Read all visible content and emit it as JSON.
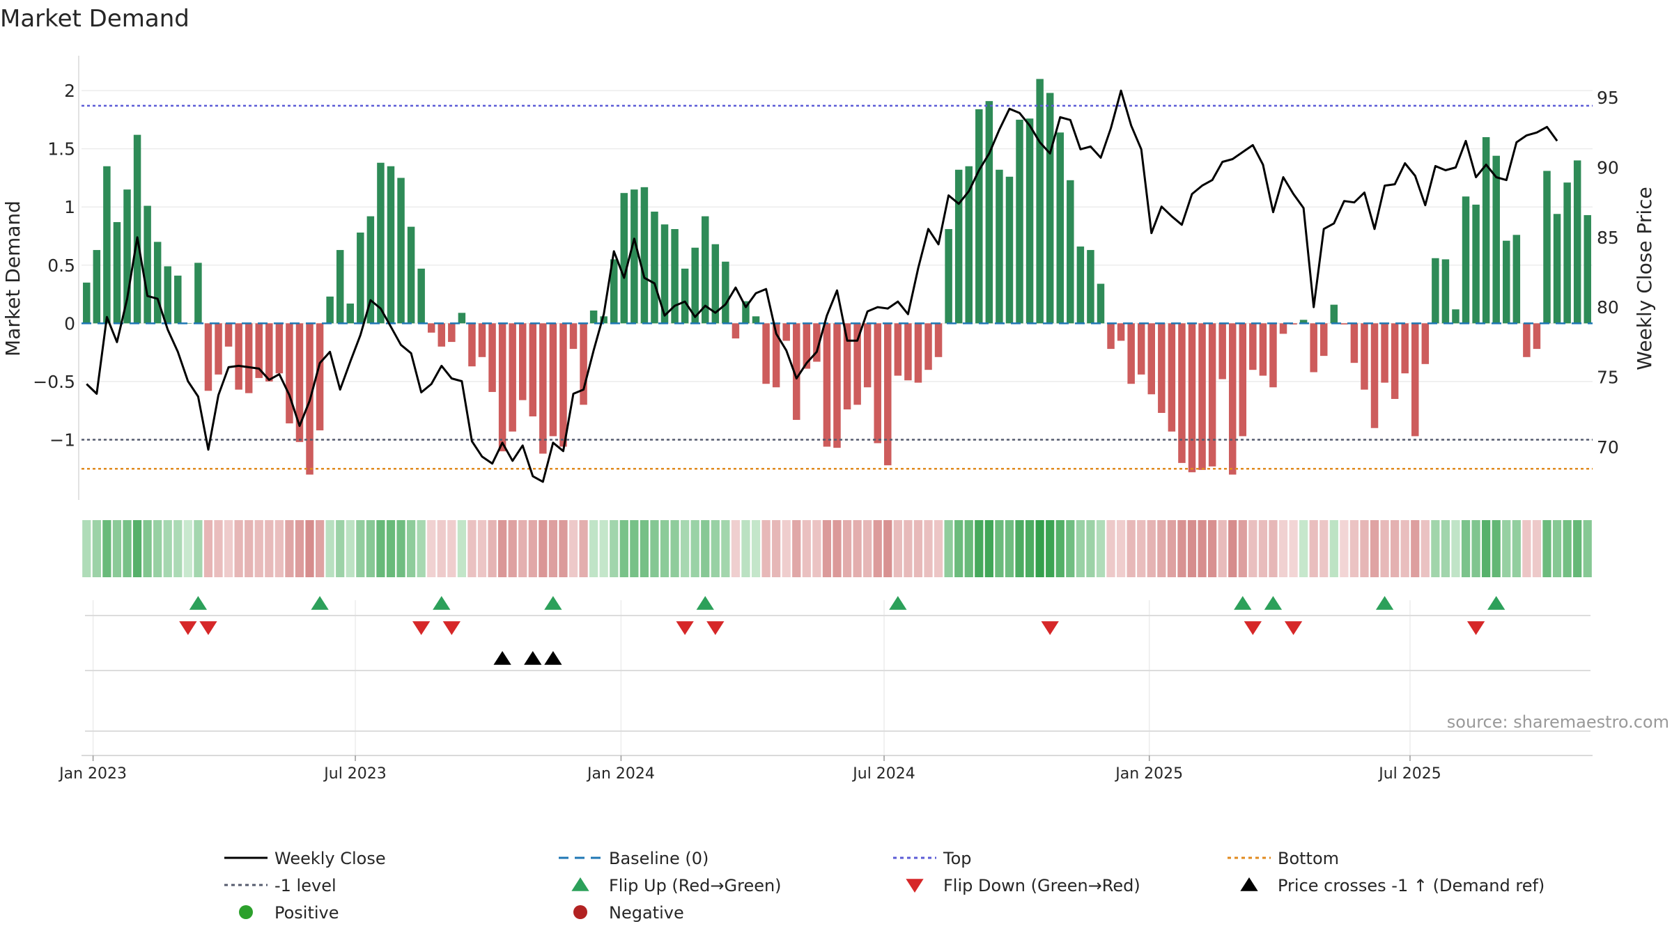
{
  "chart_data": {
    "type": "bar",
    "title": "Market Demand",
    "ylabel": "Market Demand",
    "y2label": "Weekly Close Price",
    "source": "source: sharemaestro.com",
    "ylim": [
      -1.5,
      2.3
    ],
    "y2lim": [
      66.35,
      98.0
    ],
    "yticks": [
      2,
      1.5,
      1,
      0.5,
      0,
      -0.5,
      -1
    ],
    "yticklabels": [
      "2",
      "1.5",
      "1",
      "0.5",
      "0",
      "−0.5",
      "−1"
    ],
    "y2ticks": [
      95,
      90,
      85,
      80,
      75,
      70
    ],
    "y2ticklabels": [
      "95",
      "90",
      "85",
      "80",
      "75",
      "70"
    ],
    "xticks": [
      "Jan 2023",
      "Jul 2023",
      "Jan 2024",
      "Jul 2024",
      "Jan 2025",
      "Jul 2025"
    ],
    "xtick_weeks": [
      1.14,
      27.0,
      53.2,
      79.14,
      105.29,
      131.0
    ],
    "levels": {
      "top": 1.87,
      "bottom": -1.25,
      "minus_one": -1.0,
      "baseline": 0
    },
    "demand": [
      0.35,
      0.63,
      1.35,
      0.87,
      1.15,
      1.62,
      1.01,
      0.7,
      0.49,
      0.41,
      0.0,
      0.52,
      -0.58,
      -0.44,
      -0.2,
      -0.57,
      -0.6,
      -0.47,
      -0.5,
      -0.43,
      -0.86,
      -1.02,
      -1.3,
      -0.92,
      0.23,
      0.63,
      0.17,
      0.78,
      0.92,
      1.38,
      1.35,
      1.25,
      0.83,
      0.47,
      -0.08,
      -0.2,
      -0.16,
      0.09,
      -0.37,
      -0.29,
      -0.59,
      -1.1,
      -0.93,
      -0.66,
      -0.8,
      -1.12,
      -0.97,
      -1.06,
      -0.22,
      -0.7,
      0.11,
      0.06,
      0.55,
      1.12,
      1.15,
      1.17,
      0.96,
      0.85,
      0.81,
      0.47,
      0.65,
      0.92,
      0.68,
      0.53,
      -0.13,
      0.19,
      0.06,
      -0.52,
      -0.55,
      -0.15,
      -0.83,
      -0.39,
      -0.33,
      -1.06,
      -1.07,
      -0.74,
      -0.7,
      -0.55,
      -1.03,
      -1.22,
      -0.45,
      -0.49,
      -0.51,
      -0.4,
      -0.29,
      0.81,
      1.32,
      1.35,
      1.84,
      1.91,
      1.32,
      1.26,
      1.75,
      1.76,
      2.1,
      1.98,
      1.64,
      1.23,
      0.66,
      0.63,
      0.34,
      -0.22,
      -0.15,
      -0.52,
      -0.44,
      -0.61,
      -0.77,
      -0.93,
      -1.2,
      -1.28,
      -1.26,
      -1.23,
      -0.48,
      -1.3,
      -0.97,
      -0.4,
      -0.45,
      -0.55,
      -0.09,
      -0.01,
      0.03,
      -0.42,
      -0.28,
      0.16,
      -0.01,
      -0.34,
      -0.57,
      -0.9,
      -0.51,
      -0.65,
      -0.43,
      -0.97,
      -0.35,
      0.56,
      0.55,
      0.12,
      1.09,
      1.02,
      1.6,
      1.44,
      0.71,
      0.76,
      -0.29,
      -0.22,
      1.31,
      0.94,
      1.21,
      1.4,
      0.93
    ],
    "weekly_close": [
      74.5,
      73.8,
      79.3,
      77.5,
      80.6,
      85.0,
      80.8,
      80.6,
      78.4,
      76.8,
      74.7,
      73.6,
      69.8,
      73.7,
      75.7,
      75.8,
      75.7,
      75.6,
      74.8,
      75.2,
      73.7,
      71.5,
      73.3,
      76.0,
      76.8,
      74.1,
      76.1,
      78.0,
      80.5,
      79.9,
      78.6,
      77.3,
      76.7,
      73.9,
      74.5,
      75.8,
      74.9,
      74.7,
      70.4,
      69.3,
      68.8,
      70.3,
      69.0,
      70.1,
      67.9,
      67.5,
      70.3,
      69.7,
      73.8,
      74.1,
      76.9,
      79.5,
      84.0,
      82.1,
      84.9,
      82.1,
      81.7,
      79.4,
      80.1,
      80.4,
      79.3,
      80.1,
      79.6,
      80.2,
      81.4,
      80.0,
      81.0,
      81.3,
      78.1,
      76.9,
      74.9,
      76.0,
      76.8,
      79.4,
      81.2,
      77.6,
      77.6,
      79.7,
      80.0,
      79.9,
      80.4,
      79.5,
      82.8,
      85.6,
      84.5,
      88.0,
      87.4,
      88.3,
      89.8,
      91.0,
      92.7,
      94.2,
      93.9,
      93.0,
      91.8,
      91.0,
      93.6,
      93.4,
      91.3,
      91.5,
      90.7,
      92.8,
      95.5,
      93.0,
      91.3,
      85.3,
      87.2,
      86.5,
      85.9,
      88.1,
      88.7,
      89.1,
      90.4,
      90.6,
      91.1,
      91.6,
      90.2,
      86.8,
      89.3,
      88.1,
      87.1,
      80.0,
      85.6,
      86.0,
      87.6,
      87.5,
      88.2,
      85.6,
      88.7,
      88.8,
      90.3,
      89.4,
      87.3,
      90.1,
      89.8,
      90.0,
      91.9,
      89.3,
      90.2,
      89.3,
      89.1,
      91.8,
      92.3,
      92.5,
      92.9,
      91.9
    ],
    "flip_up_weeks": [
      11,
      23,
      35,
      46,
      61,
      80,
      114,
      117,
      128,
      139
    ],
    "flip_down_weeks": [
      10,
      12,
      33,
      36,
      59,
      62,
      95,
      115,
      119,
      137
    ],
    "price_cross_weeks": [
      41,
      44,
      46
    ],
    "legend": [
      {
        "label": "Weekly Close",
        "symbol": "line-solid",
        "color": "#000000"
      },
      {
        "label": "Baseline (0)",
        "symbol": "line-dashed",
        "color": "#1f77b4"
      },
      {
        "label": "Top",
        "symbol": "line-dotted",
        "color": "#5b5bd6"
      },
      {
        "label": "Bottom",
        "symbol": "line-dotted",
        "color": "#e08a1e"
      },
      {
        "label": "-1 level",
        "symbol": "line-dotted",
        "color": "#555b6e"
      },
      {
        "label": "Flip Up (Red→Green)",
        "symbol": "triangle-up",
        "color": "#2ca05a"
      },
      {
        "label": "Flip Down (Green→Red)",
        "symbol": "triangle-down",
        "color": "#d62728"
      },
      {
        "label": "Price crosses -1 ↑ (Demand ref)",
        "symbol": "triangle-up",
        "color": "#000000"
      },
      {
        "label": "Positive",
        "symbol": "dot",
        "color": "#2ca02c"
      },
      {
        "label": "Negative",
        "symbol": "dot",
        "color": "#b22222"
      }
    ]
  },
  "colors": {
    "positive_bar": "#2e8b57",
    "negative_bar": "#cd5c5c",
    "weekly_close": "#000000",
    "baseline": "#1f77b4",
    "top": "#5b5bd6",
    "bottom": "#e08a1e",
    "minus_one": "#555b6e",
    "flip_up": "#2ca05a",
    "flip_down": "#d62728",
    "price_cross": "#000000"
  }
}
